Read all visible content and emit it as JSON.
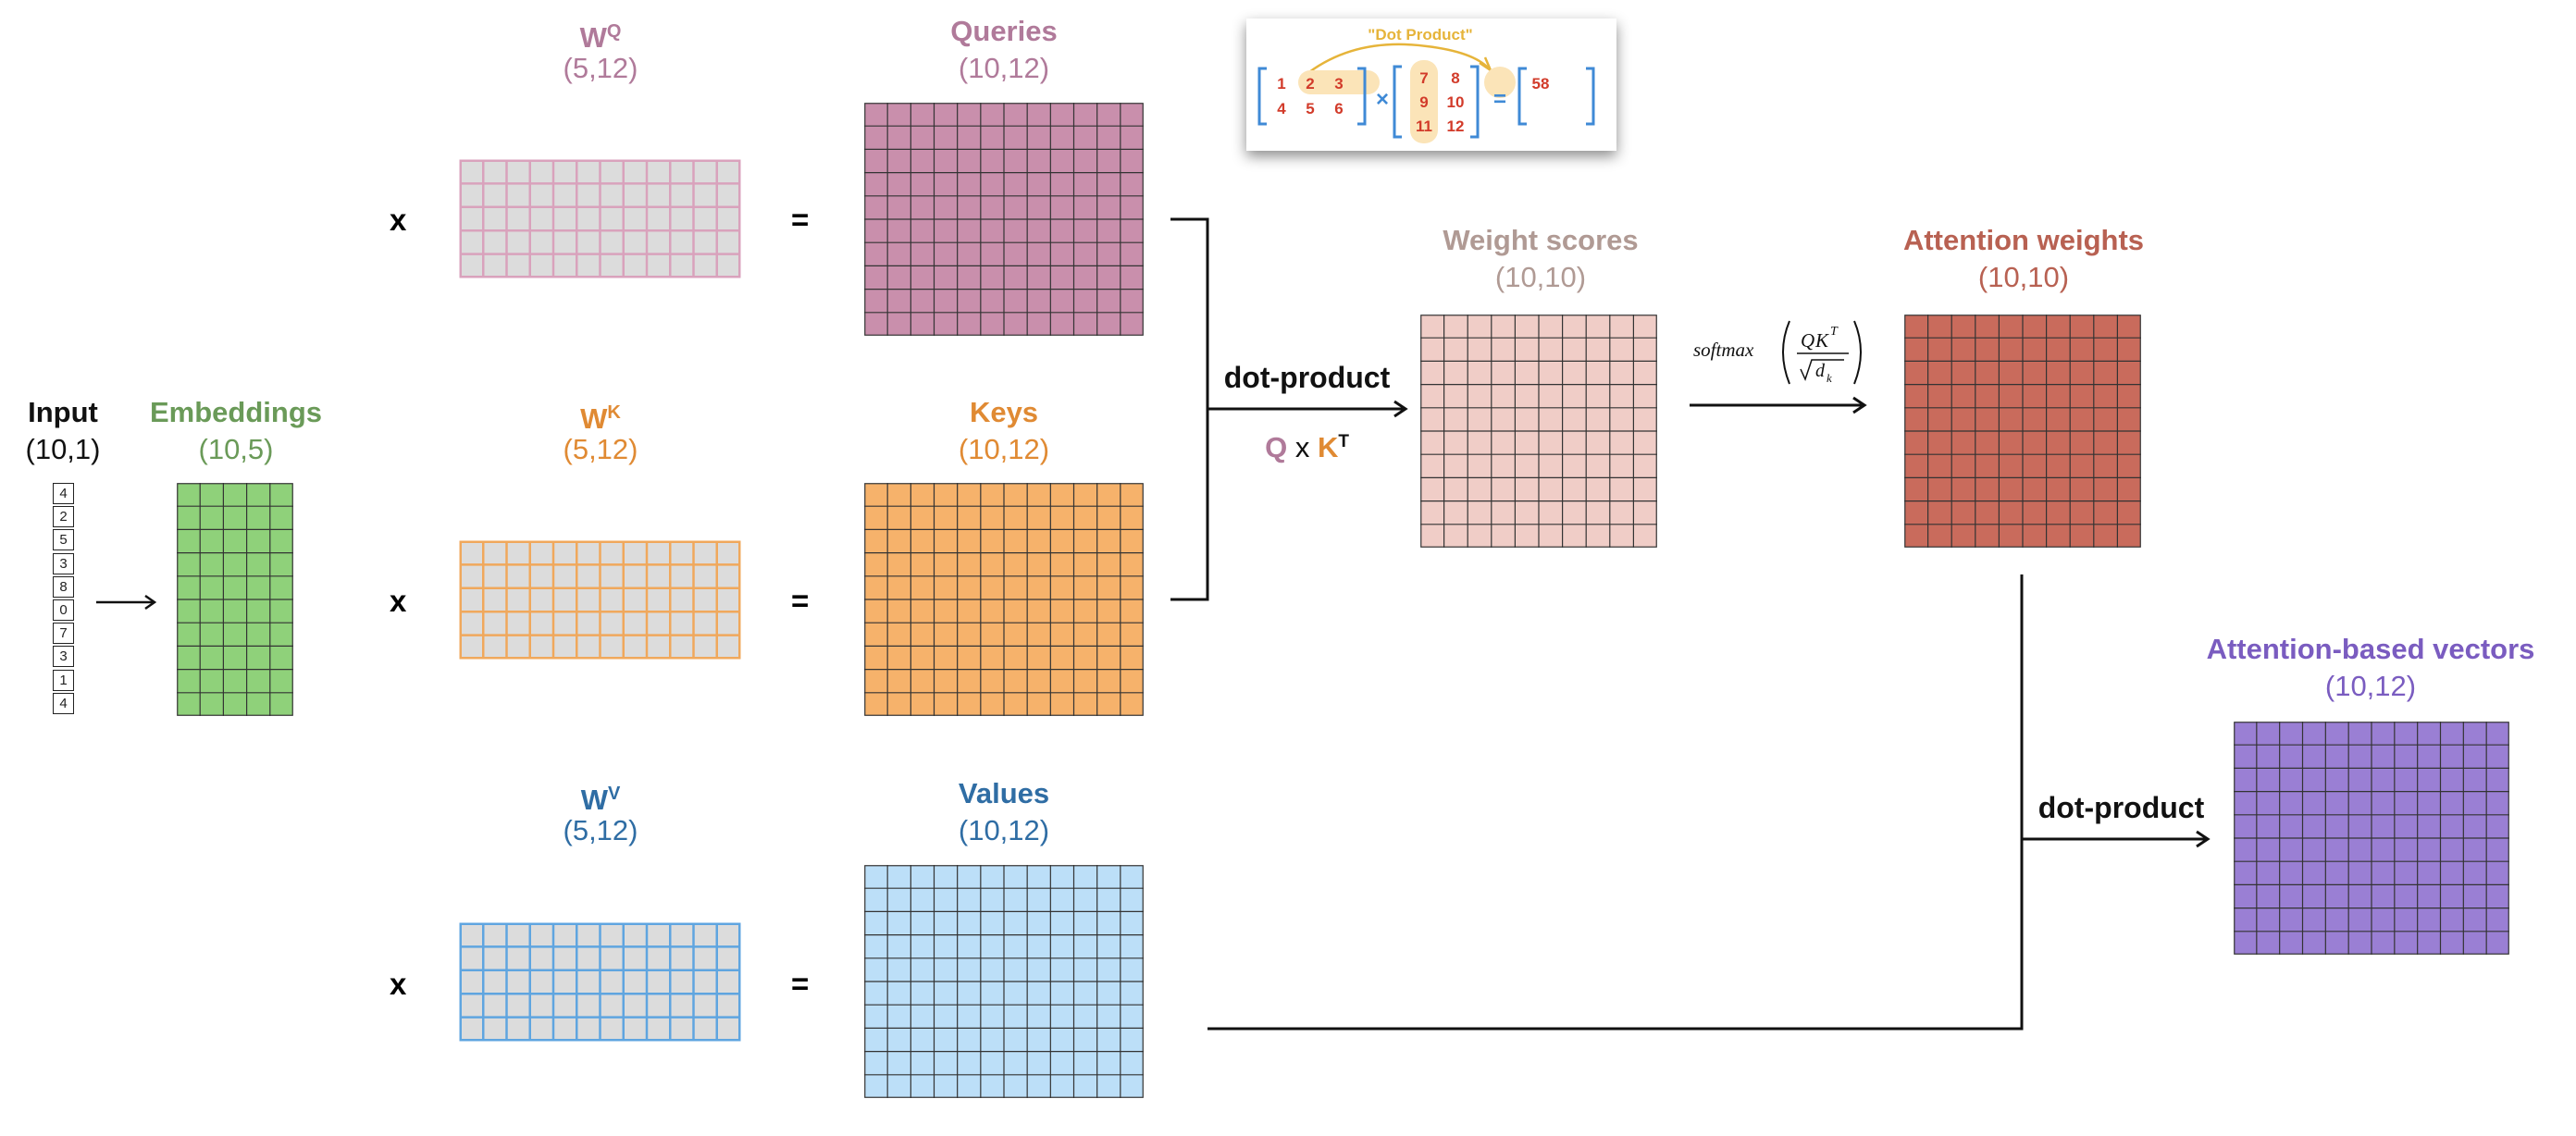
{
  "input": {
    "title": "Input",
    "dims": "(10,1)",
    "values": [
      "4",
      "2",
      "5",
      "3",
      "8",
      "0",
      "7",
      "3",
      "1",
      "4"
    ]
  },
  "embeddings": {
    "title": "Embeddings",
    "dims": "(10,5)",
    "color": "#6a9a58",
    "fill": "#8fd17a"
  },
  "wq": {
    "title": "W",
    "sup": "Q",
    "dims": "(5,12)",
    "color": "#b07a9a",
    "stroke": "#d9a2bc"
  },
  "wk": {
    "title": "W",
    "sup": "K",
    "dims": "(5,12)",
    "color": "#e08a33",
    "stroke": "#f0a85c"
  },
  "wv": {
    "title": "W",
    "sup": "V",
    "dims": "(5,12)",
    "color": "#2f6da4",
    "stroke": "#5fa5e0"
  },
  "queries": {
    "title": "Queries",
    "dims": "(10,12)",
    "color": "#b07a9a",
    "fill": "#c98fac"
  },
  "keys": {
    "title": "Keys",
    "dims": "(10,12)",
    "color": "#e08a33",
    "fill": "#f6b26b"
  },
  "values": {
    "title": "Values",
    "dims": "(10,12)",
    "color": "#2f6da4",
    "fill": "#bcdff8"
  },
  "weight_scores": {
    "title": "Weight scores",
    "dims": "(10,10)",
    "color": "#b09a94",
    "fill": "#f0cdc7"
  },
  "attention_weights": {
    "title": "Attention weights",
    "dims": "(10,10)",
    "color": "#b86152",
    "fill": "#c96b5c"
  },
  "attention_vectors": {
    "title": "Attention-based vectors",
    "dims": "(10,12)",
    "color": "#7a5cc0",
    "fill": "#9a7fd4"
  },
  "operators": {
    "times": "x",
    "equals": "="
  },
  "dot_product_1": {
    "label": "dot-product",
    "q": "Q",
    "x": "x",
    "k": "K",
    "t": "T"
  },
  "softmax": {
    "fn": "softmax",
    "num_q": "Q",
    "num_k": "K",
    "num_t": "T",
    "den": "d",
    "den_sub": "k"
  },
  "dot_product_2": {
    "label": "dot-product"
  },
  "example": {
    "title": "\"Dot Product\"",
    "a": [
      [
        "1",
        "2",
        "3"
      ],
      [
        "4",
        "5",
        "6"
      ]
    ],
    "b": [
      [
        "7",
        "8"
      ],
      [
        "9",
        "10"
      ],
      [
        "11",
        "12"
      ]
    ],
    "times": "×",
    "equals": "=",
    "result": "58"
  }
}
